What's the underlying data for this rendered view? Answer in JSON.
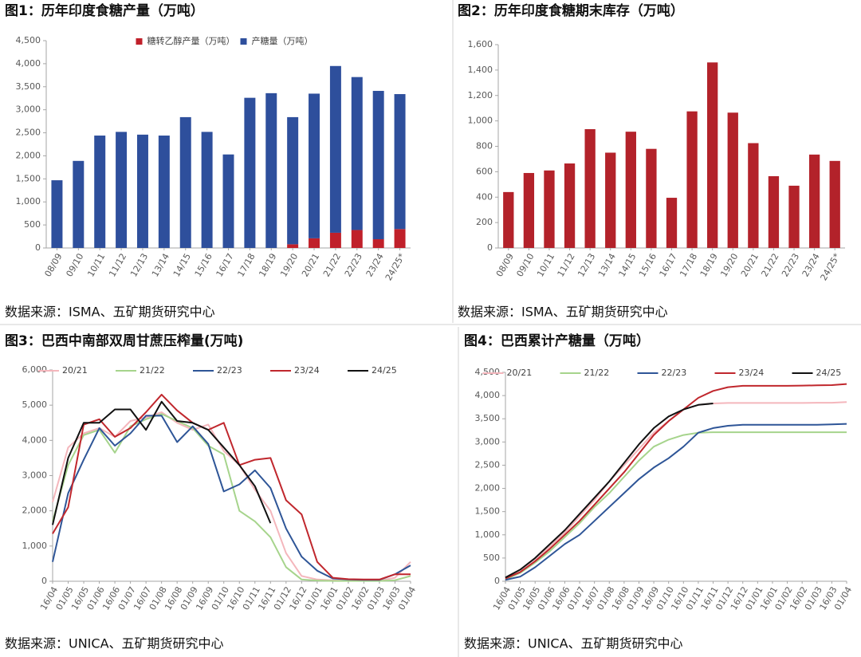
{
  "chart_data": [
    {
      "type": "bar",
      "title": "图1：历年印度食糖产量（万吨）",
      "source": "数据来源：ISMA、五矿期货研究中心",
      "stacked": true,
      "legend": "top",
      "categories": [
        "08/09",
        "09/10",
        "10/11",
        "11/12",
        "12/13",
        "13/14",
        "14/15",
        "15/16",
        "16/17",
        "17/18",
        "18/19",
        "19/20",
        "20/21",
        "21/22",
        "22/23",
        "23/24",
        "24/25*"
      ],
      "series": [
        {
          "name": "糖转乙醇产量（万吨）",
          "color": "#c0202a",
          "values": [
            0,
            0,
            0,
            0,
            0,
            0,
            0,
            0,
            0,
            0,
            0,
            80,
            210,
            330,
            390,
            190,
            410
          ]
        },
        {
          "name": "产糖量（万吨）",
          "color": "#2e4f9c",
          "values": [
            1470,
            1890,
            2440,
            2520,
            2460,
            2440,
            2840,
            2520,
            2030,
            3260,
            3360,
            2760,
            3140,
            3620,
            3320,
            3220,
            2930
          ]
        }
      ],
      "ylim": [
        0,
        4500
      ],
      "yticks": [
        0,
        500,
        {
          "value": 1000,
          "label": "1,000"
        },
        {
          "value": 1500,
          "label": "1,500"
        },
        {
          "value": 2000,
          "label": "2,000"
        },
        {
          "value": 2500,
          "label": "2,500"
        },
        {
          "value": 3000,
          "label": "3,000"
        },
        {
          "value": 3500,
          "label": "3,500"
        },
        {
          "value": 4000,
          "label": "4,000"
        },
        {
          "value": 4500,
          "label": "4,500"
        }
      ]
    },
    {
      "type": "bar",
      "title": "图2：历年印度食糖期末库存（万吨）",
      "source": "数据来源：ISMA、五矿期货研究中心",
      "categories": [
        "08/09",
        "09/10",
        "10/11",
        "11/12",
        "12/13",
        "13/14",
        "14/15",
        "15/16",
        "16/17",
        "17/18",
        "18/19",
        "19/20",
        "20/21",
        "21/22",
        "22/23",
        "23/24",
        "24/25*"
      ],
      "series": [
        {
          "color": "#b3222a",
          "values": [
            440,
            590,
            610,
            665,
            935,
            750,
            915,
            780,
            395,
            1075,
            1460,
            1065,
            825,
            565,
            490,
            735,
            685
          ]
        }
      ],
      "ylim": [
        0,
        1600
      ],
      "yticks": [
        0,
        200,
        400,
        600,
        800,
        {
          "value": 1000,
          "label": "1,000"
        },
        {
          "value": 1200,
          "label": "1,200"
        },
        {
          "value": 1400,
          "label": "1,400"
        },
        {
          "value": 1600,
          "label": "1,600"
        }
      ]
    },
    {
      "type": "line",
      "title": "图3：巴西中南部双周甘蔗压榨量(万吨)",
      "source": "数据来源：UNICA、五矿期货研究中心",
      "legend": "top",
      "categories": [
        "16/04",
        "01/05",
        "16/05",
        "01/06",
        "16/06",
        "01/07",
        "16/07",
        "01/08",
        "16/08",
        "01/09",
        "16/09",
        "01/10",
        "16/10",
        "01/11",
        "16/11",
        "01/12",
        "16/12",
        "01/01",
        "16/01",
        "01/02",
        "16/02",
        "01/03",
        "16/03",
        "01/04"
      ],
      "series": [
        {
          "name": "20/21",
          "color": "#f4b6bc",
          "values": [
            2250,
            3800,
            4200,
            4350,
            4100,
            4550,
            4650,
            4800,
            4500,
            4300,
            4450,
            3700,
            3300,
            2600,
            2000,
            800,
            150,
            50,
            30,
            20,
            20,
            20,
            100,
            550
          ]
        },
        {
          "name": "21/22",
          "color": "#a6d48c",
          "values": [
            1700,
            3300,
            4150,
            4300,
            3650,
            4400,
            4600,
            4750,
            4550,
            4350,
            3850,
            3600,
            2000,
            1700,
            1250,
            400,
            50,
            20,
            10,
            10,
            10,
            10,
            30,
            150
          ]
        },
        {
          "name": "22/23",
          "color": "#2e5597",
          "values": [
            550,
            2500,
            3450,
            4350,
            3850,
            4200,
            4700,
            4700,
            3950,
            4400,
            3900,
            2550,
            2750,
            3150,
            2650,
            1500,
            700,
            300,
            80,
            50,
            40,
            40,
            200,
            450
          ]
        },
        {
          "name": "23/24",
          "color": "#c0272d",
          "values": [
            1350,
            2100,
            4450,
            4600,
            4100,
            4350,
            4800,
            5300,
            4850,
            4500,
            4300,
            4500,
            3300,
            3450,
            3500,
            2300,
            1900,
            550,
            100,
            60,
            50,
            50,
            200,
            200
          ]
        },
        {
          "name": "24/25",
          "color": "#111111",
          "values": [
            1600,
            3500,
            4500,
            4500,
            4880,
            4880,
            4300,
            5100,
            4550,
            4500,
            4300,
            3800,
            3300,
            2700,
            1650,
            null,
            null,
            null,
            null,
            null,
            null,
            null,
            null,
            null
          ]
        }
      ],
      "ylim": [
        0,
        6000
      ],
      "yticks": [
        0,
        {
          "value": 1000,
          "label": "1,000"
        },
        {
          "value": 2000,
          "label": "2,000"
        },
        {
          "value": 3000,
          "label": "3,000"
        },
        {
          "value": 4000,
          "label": "4,000"
        },
        {
          "value": 5000,
          "label": "5,000"
        },
        {
          "value": 6000,
          "label": "6,000"
        }
      ]
    },
    {
      "type": "line",
      "title": "图4：巴西累计产糖量（万吨）",
      "source": "数据来源：UNICA、五矿期货研究中心",
      "legend": "top",
      "categories": [
        "16/04",
        "01/05",
        "16/05",
        "01/06",
        "16/06",
        "01/07",
        "16/07",
        "01/08",
        "16/08",
        "01/09",
        "16/09",
        "01/10",
        "16/10",
        "01/11",
        "16/11",
        "01/12",
        "16/12",
        "01/01",
        "16/01",
        "01/02",
        "16/02",
        "01/03",
        "16/03",
        "01/04"
      ],
      "series": [
        {
          "name": "20/21",
          "color": "#f4b6bc",
          "values": [
            50,
            200,
            450,
            750,
            1050,
            1400,
            1750,
            2150,
            2500,
            2850,
            3200,
            3450,
            3700,
            3800,
            3830,
            3840,
            3840,
            3840,
            3840,
            3840,
            3840,
            3845,
            3845,
            3860
          ]
        },
        {
          "name": "21/22",
          "color": "#a6d48c",
          "values": [
            40,
            180,
            400,
            650,
            950,
            1250,
            1600,
            1900,
            2250,
            2600,
            2900,
            3050,
            3150,
            3200,
            3210,
            3210,
            3210,
            3210,
            3210,
            3210,
            3210,
            3210,
            3210,
            3210
          ]
        },
        {
          "name": "22/23",
          "color": "#2e5597",
          "values": [
            30,
            100,
            300,
            550,
            800,
            1000,
            1300,
            1600,
            1900,
            2200,
            2450,
            2650,
            2900,
            3200,
            3300,
            3350,
            3370,
            3370,
            3370,
            3370,
            3370,
            3370,
            3380,
            3390
          ]
        },
        {
          "name": "23/24",
          "color": "#c0272d",
          "values": [
            60,
            200,
            430,
            700,
            1000,
            1300,
            1650,
            2000,
            2350,
            2750,
            3150,
            3450,
            3700,
            3950,
            4100,
            4180,
            4210,
            4210,
            4210,
            4210,
            4215,
            4220,
            4225,
            4250
          ]
        },
        {
          "name": "24/25",
          "color": "#111111",
          "values": [
            80,
            250,
            500,
            800,
            1100,
            1450,
            1800,
            2150,
            2550,
            2950,
            3300,
            3550,
            3700,
            3800,
            3830,
            null,
            null,
            null,
            null,
            null,
            null,
            null,
            null,
            null
          ]
        }
      ],
      "ylim": [
        0,
        4500
      ],
      "yticks": [
        0,
        500,
        {
          "value": 1000,
          "label": "1,000"
        },
        {
          "value": 1500,
          "label": "1,500"
        },
        {
          "value": 2000,
          "label": "2,000"
        },
        {
          "value": 2500,
          "label": "2,500"
        },
        {
          "value": 3000,
          "label": "3,000"
        },
        {
          "value": 3500,
          "label": "3,500"
        },
        {
          "value": 4000,
          "label": "4,000"
        },
        {
          "value": 4500,
          "label": "4,500"
        }
      ]
    }
  ]
}
